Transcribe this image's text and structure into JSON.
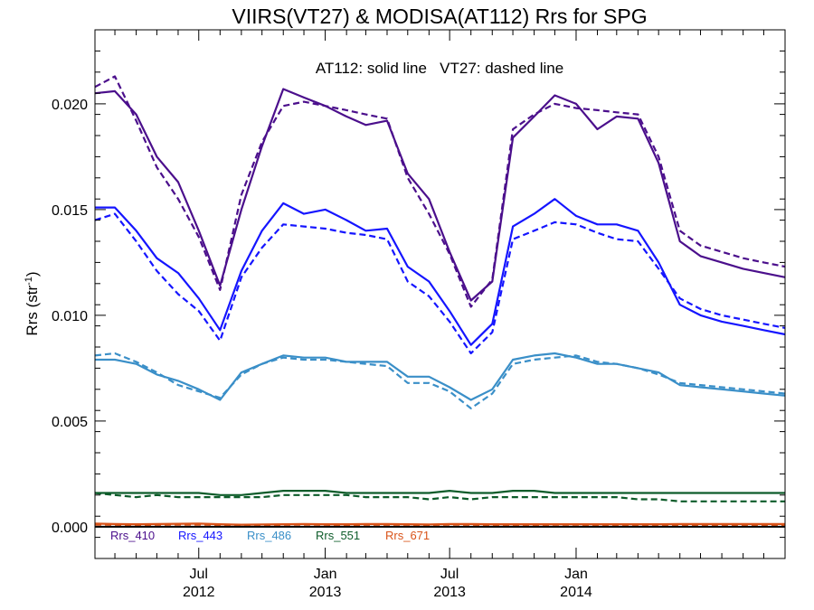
{
  "chart_data": {
    "type": "line",
    "title": "VIIRS(VT27) & MODISA(AT112)  Rrs for SPG",
    "annotation": "AT112: solid line   VT27: dashed line",
    "ylabel": "Rrs (str",
    "ylabel_sup": "-1",
    "ylabel_close": ")",
    "xlabel": "",
    "ylim": [
      -0.0015,
      0.0235
    ],
    "xlim": [
      "2012-02-01",
      "2014-11-01"
    ],
    "y_ticks": [
      "0.000",
      "0.005",
      "0.010",
      "0.015",
      "0.020"
    ],
    "y_tick_values": [
      0.0,
      0.005,
      0.01,
      0.015,
      0.02
    ],
    "x_ticks": [
      {
        "date": "2012-07-01",
        "month": "Jul",
        "year": "2012"
      },
      {
        "date": "2013-01-01",
        "month": "Jan",
        "year": "2013"
      },
      {
        "date": "2013-07-01",
        "month": "Jul",
        "year": "2013"
      },
      {
        "date": "2014-01-01",
        "month": "Jan",
        "year": "2014"
      }
    ],
    "zero_line": true,
    "grid": false,
    "legend_position": "bottom-left",
    "x": [
      "2012-02-01",
      "2012-03-01",
      "2012-04-01",
      "2012-05-01",
      "2012-06-01",
      "2012-07-01",
      "2012-08-01",
      "2012-09-01",
      "2012-10-01",
      "2012-11-01",
      "2012-12-01",
      "2013-01-01",
      "2013-02-01",
      "2013-03-01",
      "2013-04-01",
      "2013-05-01",
      "2013-06-01",
      "2013-07-01",
      "2013-08-01",
      "2013-09-01",
      "2013-10-01",
      "2013-11-01",
      "2013-12-01",
      "2014-01-01",
      "2014-02-01",
      "2014-03-01",
      "2014-04-01",
      "2014-05-01",
      "2014-06-01",
      "2014-07-01",
      "2014-08-01",
      "2014-09-01",
      "2014-10-01",
      "2014-11-01"
    ],
    "series": [
      {
        "name": "Rrs_410",
        "color": "#4b0f8c",
        "style": "solid",
        "group": "AT112",
        "values": [
          0.0205,
          0.0206,
          0.0195,
          0.0175,
          0.0163,
          0.014,
          0.0114,
          0.015,
          0.018,
          0.0207,
          0.0203,
          0.0199,
          0.0194,
          0.019,
          0.0192,
          0.0167,
          0.0155,
          0.013,
          0.0107,
          0.0116,
          0.0184,
          0.0194,
          0.0204,
          0.02,
          0.0188,
          0.0194,
          0.0193,
          0.0172,
          0.0135,
          0.0128,
          0.0125,
          0.0122,
          0.012,
          0.0118
        ]
      },
      {
        "name": "Rrs_410",
        "color": "#4b0f8c",
        "style": "dashed",
        "group": "VT27",
        "values": [
          0.0208,
          0.0213,
          0.0192,
          0.017,
          0.0155,
          0.0137,
          0.0112,
          0.0157,
          0.0182,
          0.0199,
          0.0201,
          0.0199,
          0.0197,
          0.0195,
          0.0193,
          0.0165,
          0.0148,
          0.0129,
          0.0104,
          0.0117,
          0.0188,
          0.0195,
          0.02,
          0.0198,
          0.0197,
          0.0196,
          0.0195,
          0.0175,
          0.014,
          0.0133,
          0.013,
          0.0127,
          0.0125,
          0.0123
        ]
      },
      {
        "name": "Rrs_443",
        "color": "#1515ff",
        "style": "solid",
        "group": "AT112",
        "values": [
          0.0151,
          0.0151,
          0.014,
          0.0127,
          0.012,
          0.0108,
          0.0093,
          0.0121,
          0.014,
          0.0153,
          0.0148,
          0.015,
          0.0145,
          0.014,
          0.0141,
          0.0123,
          0.0116,
          0.0102,
          0.0086,
          0.0096,
          0.0142,
          0.0148,
          0.0155,
          0.0147,
          0.0143,
          0.0143,
          0.014,
          0.0125,
          0.0105,
          0.01,
          0.0097,
          0.0095,
          0.0093,
          0.0091
        ]
      },
      {
        "name": "Rrs_443",
        "color": "#1515ff",
        "style": "dashed",
        "group": "VT27",
        "values": [
          0.0145,
          0.0148,
          0.0135,
          0.0121,
          0.011,
          0.0102,
          0.0088,
          0.0118,
          0.0132,
          0.0143,
          0.0142,
          0.0141,
          0.0139,
          0.0138,
          0.0136,
          0.0116,
          0.0109,
          0.0097,
          0.0082,
          0.0092,
          0.0136,
          0.014,
          0.0144,
          0.0143,
          0.0139,
          0.0136,
          0.0135,
          0.0122,
          0.0108,
          0.0103,
          0.01,
          0.0098,
          0.0096,
          0.0094
        ]
      },
      {
        "name": "Rrs_486",
        "color": "#3a8fc8",
        "style": "solid",
        "group": "AT112",
        "values": [
          0.0079,
          0.0079,
          0.0077,
          0.0072,
          0.0069,
          0.0065,
          0.006,
          0.0073,
          0.0077,
          0.0081,
          0.008,
          0.008,
          0.0078,
          0.0078,
          0.0078,
          0.0071,
          0.0071,
          0.0066,
          0.006,
          0.0065,
          0.0079,
          0.0081,
          0.0082,
          0.008,
          0.0077,
          0.0077,
          0.0075,
          0.0073,
          0.0067,
          0.0066,
          0.0065,
          0.0064,
          0.0063,
          0.0062
        ]
      },
      {
        "name": "Rrs_486",
        "color": "#3a8fc8",
        "style": "dashed",
        "group": "VT27",
        "values": [
          0.0081,
          0.0082,
          0.0078,
          0.0073,
          0.0067,
          0.0064,
          0.0061,
          0.0072,
          0.0077,
          0.008,
          0.0079,
          0.0079,
          0.0078,
          0.0077,
          0.0076,
          0.0068,
          0.0068,
          0.0064,
          0.0056,
          0.0063,
          0.0077,
          0.0079,
          0.008,
          0.0081,
          0.0078,
          0.0077,
          0.0075,
          0.0072,
          0.0068,
          0.0067,
          0.0066,
          0.0065,
          0.0064,
          0.0063
        ]
      },
      {
        "name": "Rrs_551",
        "color": "#0d5c2a",
        "style": "solid",
        "group": "AT112",
        "values": [
          0.0016,
          0.0016,
          0.0016,
          0.0016,
          0.0016,
          0.0016,
          0.0015,
          0.0015,
          0.0016,
          0.0017,
          0.0017,
          0.0017,
          0.0016,
          0.0016,
          0.0016,
          0.0016,
          0.0016,
          0.0017,
          0.0016,
          0.0016,
          0.0017,
          0.0017,
          0.0016,
          0.0016,
          0.0016,
          0.0016,
          0.0016,
          0.0016,
          0.0016,
          0.0016,
          0.0016,
          0.0016,
          0.0016,
          0.0016
        ]
      },
      {
        "name": "Rrs_551",
        "color": "#0d5c2a",
        "style": "dashed",
        "group": "VT27",
        "values": [
          0.0016,
          0.0015,
          0.0014,
          0.0015,
          0.0014,
          0.0014,
          0.0014,
          0.0014,
          0.0014,
          0.0015,
          0.0015,
          0.0015,
          0.0015,
          0.0014,
          0.0014,
          0.0014,
          0.0013,
          0.0014,
          0.0013,
          0.0014,
          0.0014,
          0.0014,
          0.0014,
          0.0014,
          0.0014,
          0.0014,
          0.0013,
          0.0013,
          0.0012,
          0.0012,
          0.0012,
          0.0012,
          0.0012,
          0.0012
        ]
      },
      {
        "name": "Rrs_671",
        "color": "#d9541a",
        "style": "solid",
        "group": "AT112",
        "values": [
          0.00015,
          0.00013,
          0.00012,
          0.00013,
          0.00014,
          0.00015,
          0.00012,
          0.0001,
          0.00011,
          0.00012,
          0.00013,
          0.00012,
          0.00012,
          0.00013,
          0.00013,
          0.00012,
          0.00011,
          0.00013,
          0.00013,
          0.00012,
          0.00012,
          0.00012,
          0.00012,
          0.00012,
          0.00012,
          0.00012,
          0.00012,
          0.00012,
          0.00013,
          0.00013,
          0.00013,
          0.00013,
          0.00013,
          0.00013
        ]
      },
      {
        "name": "Rrs_671",
        "color": "#d9541a",
        "style": "dashed",
        "group": "VT27",
        "values": [
          0.0001,
          9e-05,
          8e-05,
          9e-05,
          0.0001,
          0.0001,
          8e-05,
          6e-05,
          7e-05,
          9e-05,
          0.0001,
          9e-05,
          8e-05,
          9e-05,
          9e-05,
          9e-05,
          8e-05,
          0.0001,
          9e-05,
          8e-05,
          8e-05,
          8e-05,
          9e-05,
          9e-05,
          8e-05,
          8e-05,
          8e-05,
          7e-05,
          6e-05,
          6e-05,
          6e-05,
          6e-05,
          6e-05,
          6e-05
        ]
      }
    ],
    "legend": [
      {
        "label": "Rrs_410",
        "color": "#4b0f8c"
      },
      {
        "label": "Rrs_443",
        "color": "#1515ff"
      },
      {
        "label": "Rrs_486",
        "color": "#3a8fc8"
      },
      {
        "label": "Rrs_551",
        "color": "#0d5c2a"
      },
      {
        "label": "Rrs_671",
        "color": "#d9541a"
      }
    ]
  }
}
